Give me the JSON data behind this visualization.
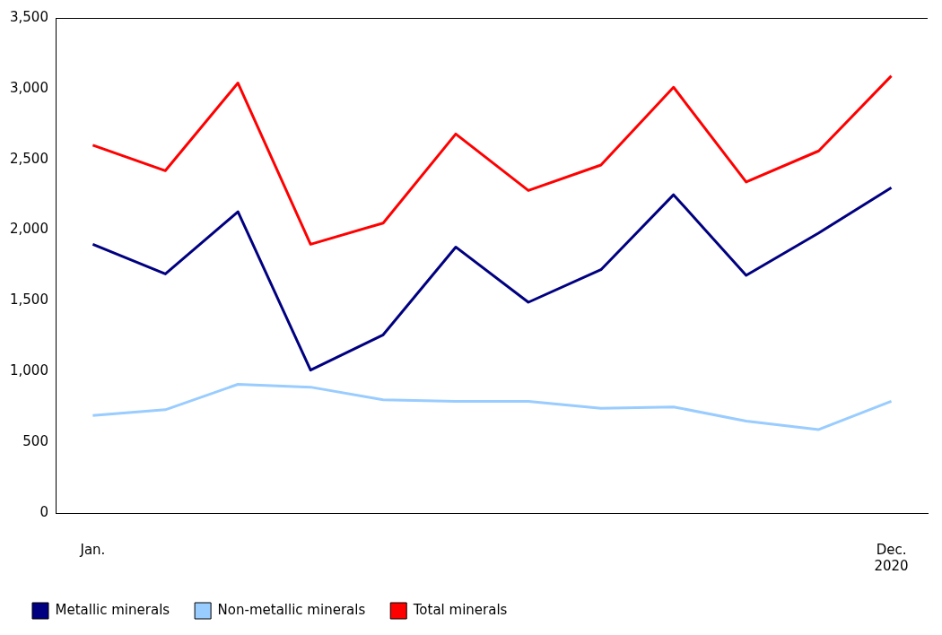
{
  "chart_data": {
    "type": "line",
    "categories": [
      "Jan.",
      null,
      null,
      null,
      null,
      null,
      null,
      null,
      null,
      null,
      null,
      "Dec.\n2020"
    ],
    "series": [
      {
        "name": "Metallic minerals",
        "color": "#000080",
        "values": [
          1900,
          1690,
          2130,
          1010,
          1260,
          1880,
          1490,
          1720,
          2250,
          1680,
          1980,
          2300
        ]
      },
      {
        "name": "Non-metallic minerals",
        "color": "#99ccff",
        "values": [
          690,
          730,
          910,
          890,
          800,
          790,
          790,
          740,
          750,
          650,
          590,
          790
        ]
      },
      {
        "name": "Total minerals",
        "color": "#ff0000",
        "values": [
          2600,
          2420,
          3040,
          1900,
          2050,
          2680,
          2280,
          2460,
          3010,
          2340,
          2560,
          3090
        ]
      }
    ],
    "ylim": [
      0,
      3500
    ],
    "yticks": [
      {
        "value": 0,
        "label": "0"
      },
      {
        "value": 500,
        "label": "500"
      },
      {
        "value": 1000,
        "label": "1,000"
      },
      {
        "value": 1500,
        "label": "1,500"
      },
      {
        "value": 2000,
        "label": "2,000"
      },
      {
        "value": 2500,
        "label": "2,500"
      },
      {
        "value": 3000,
        "label": "3,000"
      },
      {
        "value": 3500,
        "label": "3,500"
      }
    ],
    "grid": false,
    "legend": "bottom left",
    "marker": "none",
    "line_style": "solid"
  }
}
